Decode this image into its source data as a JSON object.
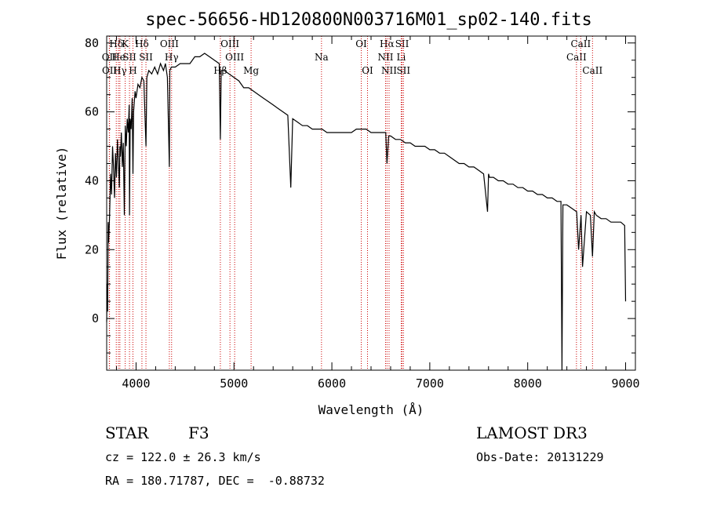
{
  "chart_data": {
    "type": "line",
    "title": "spec-56656-HD120800N003716M01_sp02-140.fits",
    "xlabel": "Wavelength (Å)",
    "ylabel": "Flux (relative)",
    "xlim": [
      3700,
      9100
    ],
    "ylim": [
      -15,
      82
    ],
    "xticks": [
      4000,
      5000,
      6000,
      7000,
      8000,
      9000
    ],
    "yticks": [
      0,
      20,
      40,
      60,
      80
    ],
    "grid": false,
    "series": [
      {
        "x": [
          3700,
          3705,
          3710,
          3715,
          3720,
          3730,
          3740,
          3750,
          3760,
          3770,
          3780,
          3790,
          3800,
          3810,
          3820,
          3830,
          3835,
          3840,
          3850,
          3860,
          3870,
          3880,
          3890,
          3900,
          3910,
          3920,
          3930,
          3933,
          3940,
          3950,
          3960,
          3968,
          3975,
          3990,
          4000,
          4020,
          4040,
          4060,
          4080,
          4101,
          4110,
          4130,
          4160,
          4190,
          4220,
          4250,
          4280,
          4300,
          4320,
          4340,
          4345,
          4360,
          4400,
          4450,
          4500,
          4550,
          4600,
          4650,
          4700,
          4750,
          4800,
          4850,
          4861,
          4870,
          4900,
          4950,
          5000,
          5050,
          5100,
          5150,
          5200,
          5250,
          5300,
          5350,
          5400,
          5450,
          5500,
          5550,
          5580,
          5600,
          5650,
          5700,
          5750,
          5800,
          5850,
          5900,
          5950,
          6000,
          6050,
          6100,
          6150,
          6200,
          6250,
          6300,
          6350,
          6400,
          6450,
          6500,
          6550,
          6563,
          6580,
          6600,
          6650,
          6700,
          6750,
          6800,
          6850,
          6900,
          6950,
          7000,
          7050,
          7100,
          7150,
          7200,
          7250,
          7300,
          7350,
          7400,
          7450,
          7500,
          7550,
          7590,
          7600,
          7610,
          7650,
          7700,
          7750,
          7800,
          7850,
          7900,
          7950,
          8000,
          8050,
          8100,
          8150,
          8200,
          8250,
          8300,
          8340,
          8350,
          8360,
          8400,
          8450,
          8500,
          8520,
          8545,
          8560,
          8600,
          8640,
          8662,
          8680,
          8700,
          8750,
          8800,
          8850,
          8900,
          8950,
          8990,
          9000
        ],
        "values": [
          -1,
          10,
          2,
          28,
          22,
          30,
          42,
          36,
          50,
          44,
          35,
          48,
          41,
          52,
          45,
          38,
          50,
          47,
          54,
          44,
          51,
          30,
          56,
          50,
          58,
          54,
          62,
          30,
          58,
          55,
          64,
          42,
          60,
          66,
          64,
          68,
          67,
          70,
          69,
          50,
          70,
          72,
          71,
          73,
          71,
          74,
          72,
          74,
          70,
          44,
          72,
          73,
          73,
          74,
          74,
          74,
          76,
          76,
          77,
          76,
          75,
          74,
          52,
          72,
          72,
          71,
          70,
          69,
          67,
          67,
          66,
          65,
          64,
          63,
          62,
          61,
          60,
          59,
          38,
          58,
          57,
          56,
          56,
          55,
          55,
          55,
          54,
          54,
          54,
          54,
          54,
          54,
          55,
          55,
          55,
          54,
          54,
          54,
          54,
          45,
          53,
          53,
          52,
          52,
          51,
          51,
          50,
          50,
          50,
          49,
          49,
          48,
          48,
          47,
          46,
          45,
          45,
          44,
          44,
          43,
          42,
          31,
          42,
          41,
          41,
          40,
          40,
          39,
          39,
          38,
          38,
          37,
          37,
          36,
          36,
          35,
          35,
          34,
          34,
          -15,
          33,
          33,
          32,
          31,
          20,
          30,
          15,
          31,
          30,
          18,
          31,
          30,
          29,
          29,
          28,
          28,
          28,
          27,
          5
        ]
      }
    ],
    "lines": [
      {
        "label": "Hδ",
        "x": 3798,
        "row": 0
      },
      {
        "label": "OII",
        "x": 3727,
        "row": 1
      },
      {
        "label": "OII",
        "x": 3729,
        "row": 2
      },
      {
        "label": "He",
        "x": 3820,
        "row": 1
      },
      {
        "label": "Hγ",
        "x": 3835,
        "row": 2
      },
      {
        "label": "K",
        "x": 3889,
        "row": 0
      },
      {
        "label": "SII",
        "x": 3933,
        "row": 1
      },
      {
        "label": "H",
        "x": 3968,
        "row": 2
      },
      {
        "label": "Hδ",
        "x": 4060,
        "row": 0
      },
      {
        "label": "SII",
        "x": 4101,
        "row": 1
      },
      {
        "label": "OIII",
        "x": 4340,
        "row": 0
      },
      {
        "label": "Hγ",
        "x": 4363,
        "row": 1
      },
      {
        "label": "Hβ",
        "x": 4861,
        "row": 2
      },
      {
        "label": "OIII",
        "x": 4959,
        "row": 0
      },
      {
        "label": "OIII",
        "x": 5007,
        "row": 1
      },
      {
        "label": "Mg",
        "x": 5175,
        "row": 2
      },
      {
        "label": "Na",
        "x": 5894,
        "row": 1
      },
      {
        "label": "OI",
        "x": 6300,
        "row": 0
      },
      {
        "label": "OI",
        "x": 6364,
        "row": 2
      },
      {
        "label": "Hα",
        "x": 6563,
        "row": 0
      },
      {
        "label": "NII",
        "x": 6548,
        "row": 1
      },
      {
        "label": "NII",
        "x": 6584,
        "row": 2
      },
      {
        "label": "SII",
        "x": 6717,
        "row": 0
      },
      {
        "label": "Li",
        "x": 6708,
        "row": 1
      },
      {
        "label": "SII",
        "x": 6731,
        "row": 2
      },
      {
        "label": "CaII",
        "x": 8498,
        "row": 1
      },
      {
        "label": "CaII",
        "x": 8542,
        "row": 0
      },
      {
        "label": "CaII",
        "x": 8662,
        "row": 2
      }
    ]
  },
  "info": {
    "class": "STAR",
    "subclass": "F3",
    "cz": "cz = 122.0 ± 26.3 km/s",
    "radec": "RA = 180.71787, DEC =  -0.88732",
    "survey": "LAMOST DR3",
    "obsdate": "Obs-Date: 20131229"
  }
}
